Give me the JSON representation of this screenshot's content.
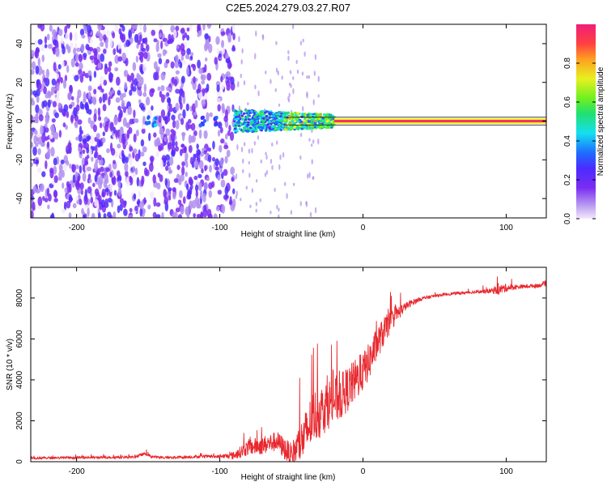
{
  "title": "C2E5.2024.279.03.27.R07",
  "chart_data": [
    {
      "type": "heatmap",
      "xlabel": "Height of straight line (km)",
      "ylabel": "Frequency (Hz)",
      "xlim": [
        -232,
        128
      ],
      "ylim": [
        -50,
        50
      ],
      "xticks": [
        -200,
        -100,
        0,
        100
      ],
      "xtick_labels": [
        "-200",
        "-100",
        "0",
        "100"
      ],
      "yticks": [
        -40,
        -20,
        0,
        20,
        40
      ],
      "ytick_labels": [
        "-40",
        "-20",
        "0",
        "20",
        "40"
      ],
      "colorbar": {
        "label": "Normalized spectral amplitude",
        "range": [
          0,
          1
        ],
        "ticks": [
          0.0,
          0.2,
          0.4,
          0.6,
          0.8
        ],
        "tick_labels": [
          "0.0",
          "0.2",
          "0.4",
          "0.6",
          "0.8"
        ],
        "colors": [
          "#f4e9fb",
          "#b08ef0",
          "#7a2cf2",
          "#4a2cff",
          "#1e6dff",
          "#14e0f0",
          "#20e070",
          "#70f020",
          "#e8f020",
          "#ffa020",
          "#ff4040",
          "#f01e78"
        ]
      },
      "regions": [
        {
          "x_range": [
            -232,
            -90
          ],
          "freq_range": [
            -50,
            50
          ],
          "description": "broadband noise"
        },
        {
          "x_range": [
            -90,
            -20
          ],
          "center_freq": 0,
          "spread": 6,
          "amplitude": "0.3-0.8"
        },
        {
          "x_range": [
            -20,
            128
          ],
          "center_freq": 0,
          "spread": 1,
          "amplitude": "0.8-1.0"
        }
      ],
      "grid": false
    },
    {
      "type": "line",
      "xlabel": "Height of straight line (km)",
      "ylabel": "SNR (10 * v/v)",
      "xlim": [
        -232,
        128
      ],
      "ylim": [
        0,
        9500
      ],
      "xticks": [
        -200,
        -100,
        0,
        100
      ],
      "xtick_labels": [
        "-200",
        "-100",
        "0",
        "100"
      ],
      "yticks": [
        0,
        2000,
        4000,
        6000,
        8000
      ],
      "ytick_labels": [
        "0",
        "2000",
        "4000",
        "6000",
        "8000"
      ],
      "grid": false,
      "series": [
        {
          "color": "#e8282e",
          "x": [
            -232,
            -200,
            -160,
            -152,
            -148,
            -140,
            -110,
            -100,
            -90,
            -80,
            -70,
            -60,
            -50,
            -40,
            -35,
            -30,
            -25,
            -20,
            -15,
            -10,
            -5,
            0,
            5,
            10,
            15,
            20,
            25,
            30,
            35,
            40,
            50,
            60,
            70,
            80,
            90,
            95,
            100,
            110,
            120,
            128
          ],
          "y": [
            180,
            200,
            220,
            400,
            250,
            200,
            250,
            250,
            300,
            700,
            800,
            1000,
            300,
            1300,
            2200,
            2400,
            2800,
            3000,
            3200,
            3600,
            4000,
            4400,
            5000,
            5800,
            6400,
            6900,
            7300,
            7600,
            7800,
            7950,
            8100,
            8200,
            8250,
            8300,
            8350,
            8400,
            8500,
            8550,
            8600,
            8650
          ],
          "noise": [
            120,
            120,
            120,
            150,
            120,
            120,
            150,
            150,
            400,
            800,
            900,
            1000,
            1200,
            2500,
            2600,
            2600,
            2500,
            2400,
            2300,
            2200,
            2100,
            1900,
            1800,
            1600,
            1400,
            1000,
            700,
            400,
            300,
            200,
            150,
            150,
            150,
            150,
            250,
            500,
            400,
            200,
            200,
            200
          ]
        }
      ]
    }
  ]
}
